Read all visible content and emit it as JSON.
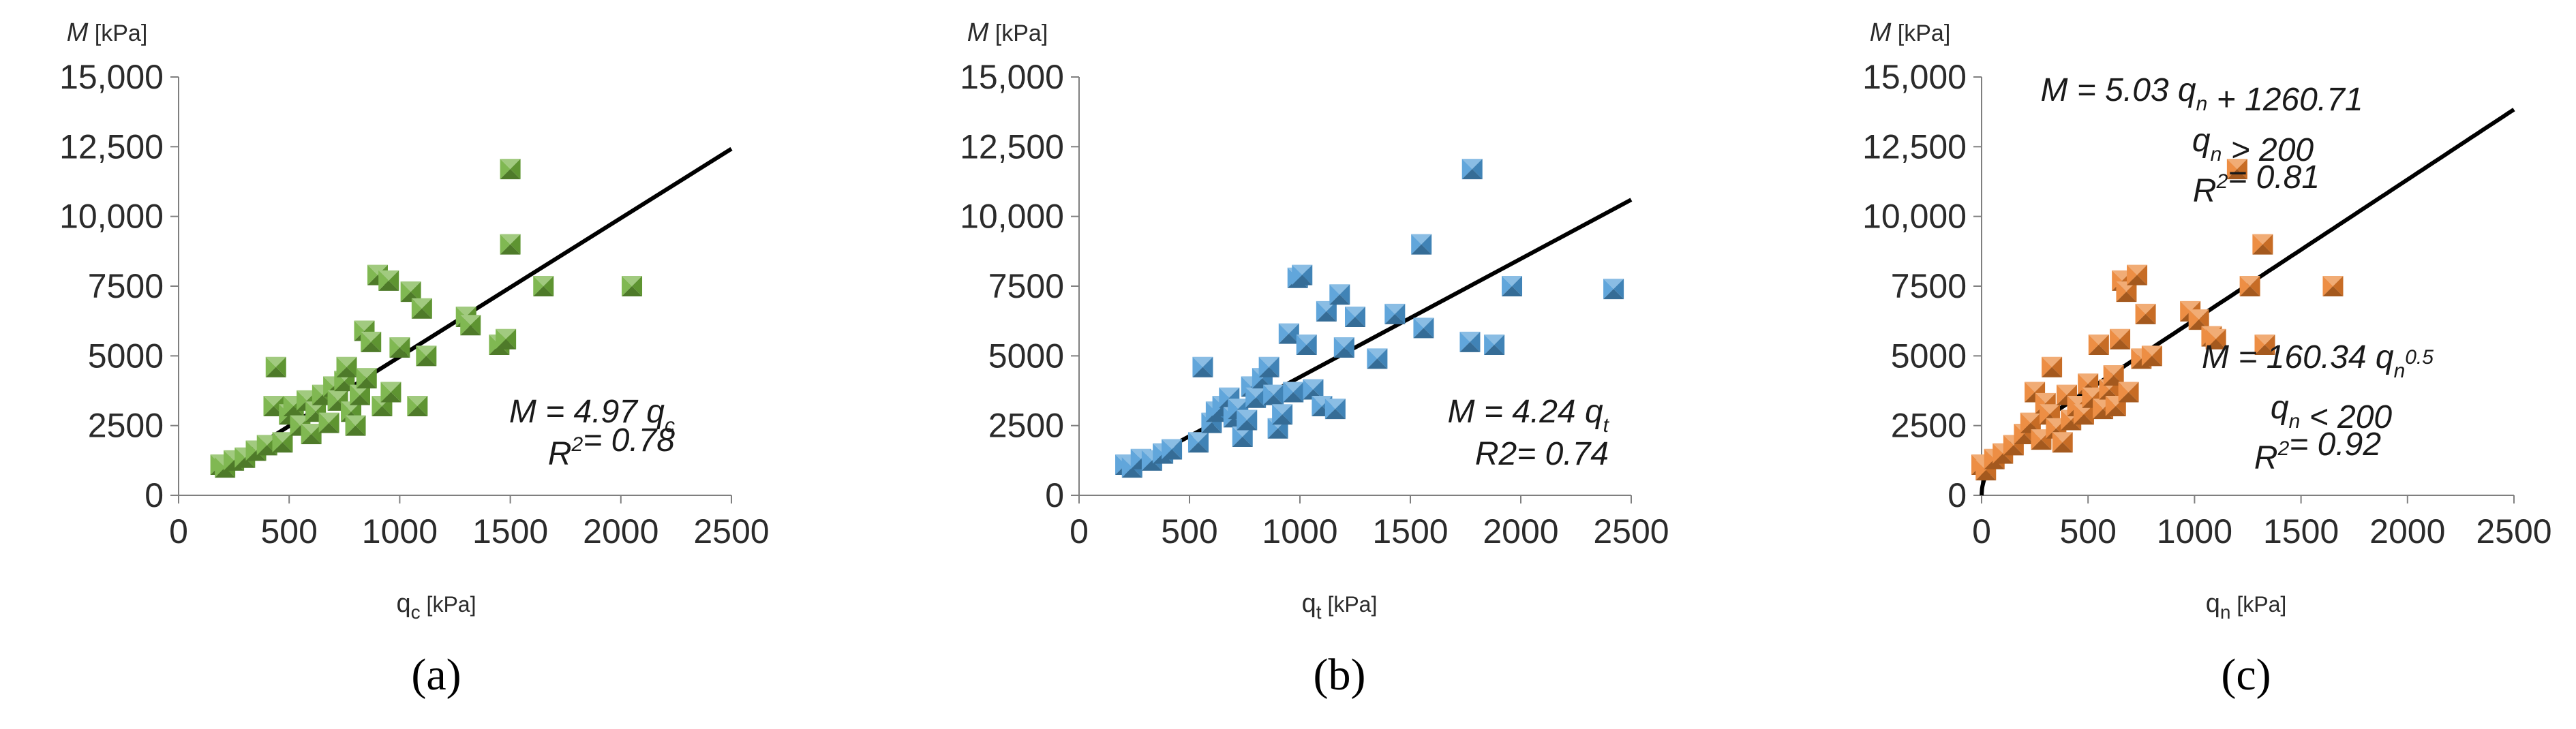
{
  "colors": {
    "panel_a_marker": "#6fae3a",
    "panel_b_marker": "#4b9ad6",
    "panel_c_marker": "#ea7f2b",
    "fit_line": "#000000",
    "axis": "#7f7f7f",
    "text": "#2b2b2b"
  },
  "chart_data": [
    {
      "type": "scatter",
      "panel_label": "(a)",
      "ylabel": "M [kPa]",
      "ylabel_main": "M",
      "ylabel_unit": " [kPa]",
      "xlabel": "qc [kPa]",
      "xlabel_main": "q",
      "xlabel_sub": "c",
      "xlabel_unit": " [kPa]",
      "xlim": [
        0,
        2500
      ],
      "ylim": [
        0,
        15000
      ],
      "x_ticks": [
        0,
        500,
        1000,
        1500,
        2000,
        2500
      ],
      "x_tick_labels": [
        "0",
        "500",
        "1000",
        "1500",
        "2000",
        "2500"
      ],
      "y_ticks": [
        0,
        2500,
        5000,
        7500,
        10000,
        12500,
        15000
      ],
      "y_tick_labels": [
        "0",
        "2500",
        "5000",
        "7500",
        "10,000",
        "12,500",
        "15,000"
      ],
      "grid": false,
      "marker_color": "#6fae3a",
      "points": [
        [
          190,
          1100
        ],
        [
          210,
          1000
        ],
        [
          250,
          1250
        ],
        [
          300,
          1350
        ],
        [
          350,
          1600
        ],
        [
          400,
          1800
        ],
        [
          430,
          3200
        ],
        [
          440,
          4600
        ],
        [
          470,
          1900
        ],
        [
          500,
          2900
        ],
        [
          520,
          3200
        ],
        [
          550,
          2500
        ],
        [
          580,
          3400
        ],
        [
          600,
          2200
        ],
        [
          620,
          3000
        ],
        [
          650,
          3600
        ],
        [
          680,
          2600
        ],
        [
          700,
          3900
        ],
        [
          720,
          3400
        ],
        [
          750,
          4100
        ],
        [
          760,
          4600
        ],
        [
          780,
          3000
        ],
        [
          800,
          2500
        ],
        [
          820,
          3600
        ],
        [
          840,
          5900
        ],
        [
          850,
          4200
        ],
        [
          870,
          5500
        ],
        [
          900,
          7900
        ],
        [
          920,
          3200
        ],
        [
          950,
          7700
        ],
        [
          960,
          3700
        ],
        [
          1000,
          5300
        ],
        [
          1050,
          7300
        ],
        [
          1080,
          3200
        ],
        [
          1100,
          6700
        ],
        [
          1120,
          5000
        ],
        [
          1300,
          6400
        ],
        [
          1320,
          6100
        ],
        [
          1450,
          5400
        ],
        [
          1480,
          5600
        ],
        [
          1500,
          9000
        ],
        [
          1500,
          11700
        ],
        [
          1650,
          7500
        ],
        [
          2050,
          7500
        ]
      ],
      "fit": {
        "kind": "linear_origin",
        "slope": 4.97,
        "x_range": [
          180,
          2500
        ]
      },
      "equation_lines": [
        {
          "main": "M = 4.97 q",
          "sub": "c",
          "sup": "",
          "tail": ""
        },
        {
          "main": "R",
          "sub": "",
          "sup": "2",
          "tail": "= 0.78"
        }
      ]
    },
    {
      "type": "scatter",
      "panel_label": "(b)",
      "ylabel": "M [kPa]",
      "ylabel_main": "M",
      "ylabel_unit": " [kPa]",
      "xlabel": "qt [kPa]",
      "xlabel_main": "q",
      "xlabel_sub": "t",
      "xlabel_unit": " [kPa]",
      "xlim": [
        0,
        2500
      ],
      "ylim": [
        0,
        15000
      ],
      "x_ticks": [
        0,
        500,
        1000,
        1500,
        2000,
        2500
      ],
      "x_tick_labels": [
        "0",
        "500",
        "1000",
        "1500",
        "2000",
        "2500"
      ],
      "y_ticks": [
        0,
        2500,
        5000,
        7500,
        10000,
        12500,
        15000
      ],
      "y_tick_labels": [
        "0",
        "2500",
        "5000",
        "7500",
        "10,000",
        "12,500",
        "15,000"
      ],
      "grid": false,
      "marker_color": "#4b9ad6",
      "points": [
        [
          210,
          1100
        ],
        [
          240,
          1000
        ],
        [
          280,
          1300
        ],
        [
          330,
          1250
        ],
        [
          380,
          1500
        ],
        [
          420,
          1650
        ],
        [
          540,
          1900
        ],
        [
          560,
          4600
        ],
        [
          600,
          2600
        ],
        [
          620,
          3000
        ],
        [
          650,
          3200
        ],
        [
          680,
          3500
        ],
        [
          700,
          2800
        ],
        [
          720,
          3100
        ],
        [
          740,
          2100
        ],
        [
          760,
          2700
        ],
        [
          780,
          3900
        ],
        [
          800,
          3500
        ],
        [
          830,
          4200
        ],
        [
          860,
          4600
        ],
        [
          880,
          3600
        ],
        [
          900,
          2400
        ],
        [
          920,
          2900
        ],
        [
          950,
          5800
        ],
        [
          970,
          3700
        ],
        [
          990,
          7800
        ],
        [
          1010,
          7900
        ],
        [
          1030,
          5400
        ],
        [
          1060,
          3800
        ],
        [
          1100,
          3200
        ],
        [
          1120,
          6600
        ],
        [
          1160,
          3100
        ],
        [
          1180,
          7200
        ],
        [
          1200,
          5300
        ],
        [
          1250,
          6400
        ],
        [
          1350,
          4900
        ],
        [
          1430,
          6500
        ],
        [
          1550,
          9000
        ],
        [
          1560,
          6000
        ],
        [
          1770,
          5500
        ],
        [
          1780,
          11700
        ],
        [
          1880,
          5400
        ],
        [
          1960,
          7500
        ],
        [
          2420,
          7400
        ]
      ],
      "fit": {
        "kind": "linear_origin",
        "slope": 4.24,
        "x_range": [
          240,
          2500
        ]
      },
      "equation_lines": [
        {
          "main": "M = 4.24 q",
          "sub": "t",
          "sup": "",
          "tail": ""
        },
        {
          "main": "R2= 0.74",
          "sub": "",
          "sup": "",
          "tail": ""
        }
      ]
    },
    {
      "type": "scatter",
      "panel_label": "(c)",
      "ylabel": "M [kPa]",
      "ylabel_main": "M",
      "ylabel_unit": " [kPa]",
      "xlabel": "qn [kPa]",
      "xlabel_main": "q",
      "xlabel_sub": "n",
      "xlabel_unit": " [kPa]",
      "xlim": [
        0,
        2500
      ],
      "ylim": [
        0,
        15000
      ],
      "x_ticks": [
        0,
        500,
        1000,
        1500,
        2000,
        2500
      ],
      "x_tick_labels": [
        "0",
        "500",
        "1000",
        "1500",
        "2000",
        "2500"
      ],
      "y_ticks": [
        0,
        2500,
        5000,
        7500,
        10000,
        12500,
        15000
      ],
      "y_tick_labels": [
        "0",
        "2500",
        "5000",
        "7500",
        "10,000",
        "12,500",
        "15,000"
      ],
      "grid": false,
      "marker_color": "#ea7f2b",
      "points": [
        [
          0,
          1100
        ],
        [
          20,
          900
        ],
        [
          60,
          1300
        ],
        [
          100,
          1500
        ],
        [
          150,
          1800
        ],
        [
          200,
          2200
        ],
        [
          230,
          2600
        ],
        [
          250,
          3700
        ],
        [
          280,
          2000
        ],
        [
          300,
          3300
        ],
        [
          320,
          2900
        ],
        [
          330,
          4600
        ],
        [
          350,
          2400
        ],
        [
          380,
          1900
        ],
        [
          400,
          3600
        ],
        [
          420,
          2700
        ],
        [
          450,
          3200
        ],
        [
          480,
          2900
        ],
        [
          500,
          4000
        ],
        [
          520,
          3500
        ],
        [
          550,
          5400
        ],
        [
          570,
          3100
        ],
        [
          600,
          3800
        ],
        [
          620,
          4300
        ],
        [
          630,
          3200
        ],
        [
          650,
          5600
        ],
        [
          660,
          7700
        ],
        [
          680,
          7300
        ],
        [
          690,
          3700
        ],
        [
          730,
          7900
        ],
        [
          750,
          4900
        ],
        [
          770,
          6500
        ],
        [
          800,
          5000
        ],
        [
          980,
          6600
        ],
        [
          1020,
          6300
        ],
        [
          1080,
          5700
        ],
        [
          1100,
          5600
        ],
        [
          1200,
          11700
        ],
        [
          1260,
          7500
        ],
        [
          1320,
          9000
        ],
        [
          1330,
          5400
        ],
        [
          1650,
          7500
        ]
      ],
      "fit": {
        "kind": "piecewise",
        "threshold": 200,
        "below": {
          "coef": 160.34,
          "power": 0.5
        },
        "above": {
          "slope": 5.03,
          "intercept": 1260.71
        },
        "x_range": [
          0,
          2500
        ]
      },
      "equation_lines_upper": [
        {
          "main": "M = 5.03 q",
          "sub": "n",
          "sup": "",
          "tail": " + 1260.71"
        },
        {
          "main": "q",
          "sub": "n",
          "sup": "",
          "tail": " > 200"
        },
        {
          "main": "R",
          "sub": "",
          "sup": "2",
          "tail": "= 0.81"
        }
      ],
      "equation_lines_lower": [
        {
          "main": "M = 160.34 q",
          "sub": "n",
          "sup": "0.5",
          "tail": ""
        },
        {
          "main": "q",
          "sub": "n",
          "sup": "",
          "tail": " < 200"
        },
        {
          "main": "R",
          "sub": "",
          "sup": "2",
          "tail": "= 0.92"
        }
      ]
    }
  ]
}
